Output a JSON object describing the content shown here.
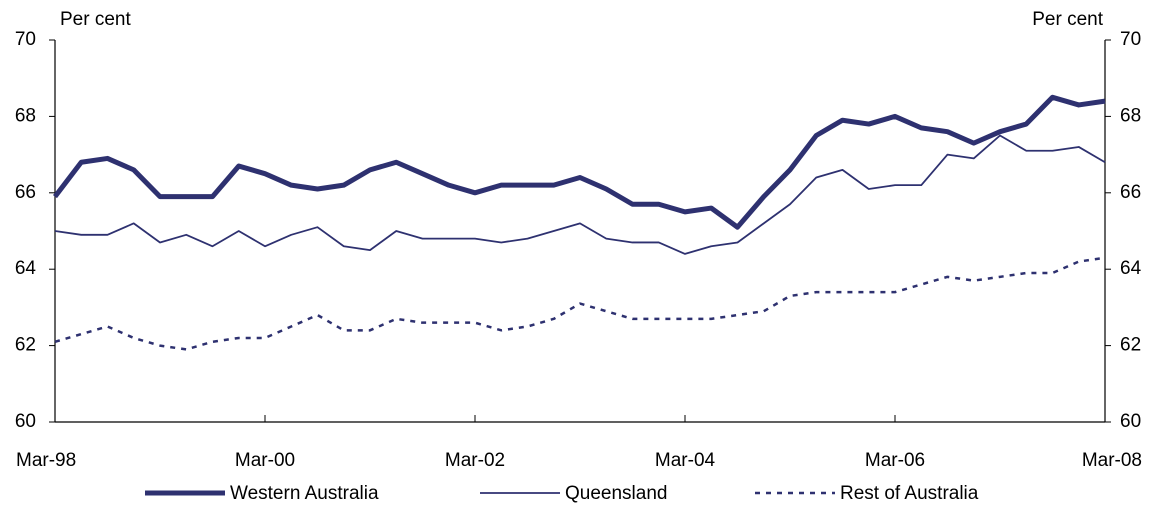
{
  "chart_data": {
    "type": "line",
    "y_label": "Per cent",
    "y2_label": "Per cent",
    "categories": [
      "Mar-98",
      null,
      null,
      null,
      null,
      null,
      null,
      null,
      "Mar-00",
      null,
      null,
      null,
      null,
      null,
      null,
      null,
      "Mar-02",
      null,
      null,
      null,
      null,
      null,
      null,
      null,
      "Mar-04",
      null,
      null,
      null,
      null,
      null,
      null,
      null,
      "Mar-06",
      null,
      null,
      null,
      null,
      null,
      null,
      null,
      "Mar-08"
    ],
    "ylim": [
      60,
      70
    ],
    "yticks": [
      60,
      62,
      64,
      66,
      68,
      70
    ],
    "y2lim": [
      60,
      70
    ],
    "y2ticks": [
      60,
      62,
      64,
      66,
      68,
      70
    ],
    "grid": false,
    "legend": "bottom",
    "series": [
      {
        "name": "Western Australia",
        "color": "#2e3170",
        "linestyle": "solid",
        "values": [
          65.9,
          66.8,
          66.9,
          66.6,
          65.9,
          65.9,
          65.9,
          66.7,
          66.5,
          66.2,
          66.1,
          66.2,
          66.6,
          66.8,
          66.5,
          66.2,
          66.0,
          66.2,
          66.2,
          66.2,
          66.4,
          66.1,
          65.7,
          65.7,
          65.5,
          65.6,
          65.1,
          65.9,
          66.6,
          67.5,
          67.9,
          67.8,
          68.0,
          67.7,
          67.6,
          67.3,
          67.6,
          67.8,
          68.5,
          68.3,
          68.4
        ]
      },
      {
        "name": "Queensland",
        "color": "#2e3170",
        "linestyle": "solid",
        "values": [
          65.0,
          64.9,
          64.9,
          65.2,
          64.7,
          64.9,
          64.6,
          65.0,
          64.6,
          64.9,
          65.1,
          64.6,
          64.5,
          65.0,
          64.8,
          64.8,
          64.8,
          64.7,
          64.8,
          65.0,
          65.2,
          64.8,
          64.7,
          64.7,
          64.4,
          64.6,
          64.7,
          65.2,
          65.7,
          66.4,
          66.6,
          66.1,
          66.2,
          66.2,
          67.0,
          66.9,
          67.5,
          67.1,
          67.1,
          67.2,
          66.8
        ]
      },
      {
        "name": "Rest of Australia",
        "color": "#2e3170",
        "linestyle": "dashed",
        "values": [
          62.1,
          62.3,
          62.5,
          62.2,
          62.0,
          61.9,
          62.1,
          62.2,
          62.2,
          62.5,
          62.8,
          62.4,
          62.4,
          62.7,
          62.6,
          62.6,
          62.6,
          62.4,
          62.5,
          62.7,
          63.1,
          62.9,
          62.7,
          62.7,
          62.7,
          62.7,
          62.8,
          62.9,
          63.3,
          63.4,
          63.4,
          63.4,
          63.4,
          63.6,
          63.8,
          63.7,
          63.8,
          63.9,
          63.9,
          64.2,
          64.3
        ]
      }
    ]
  }
}
